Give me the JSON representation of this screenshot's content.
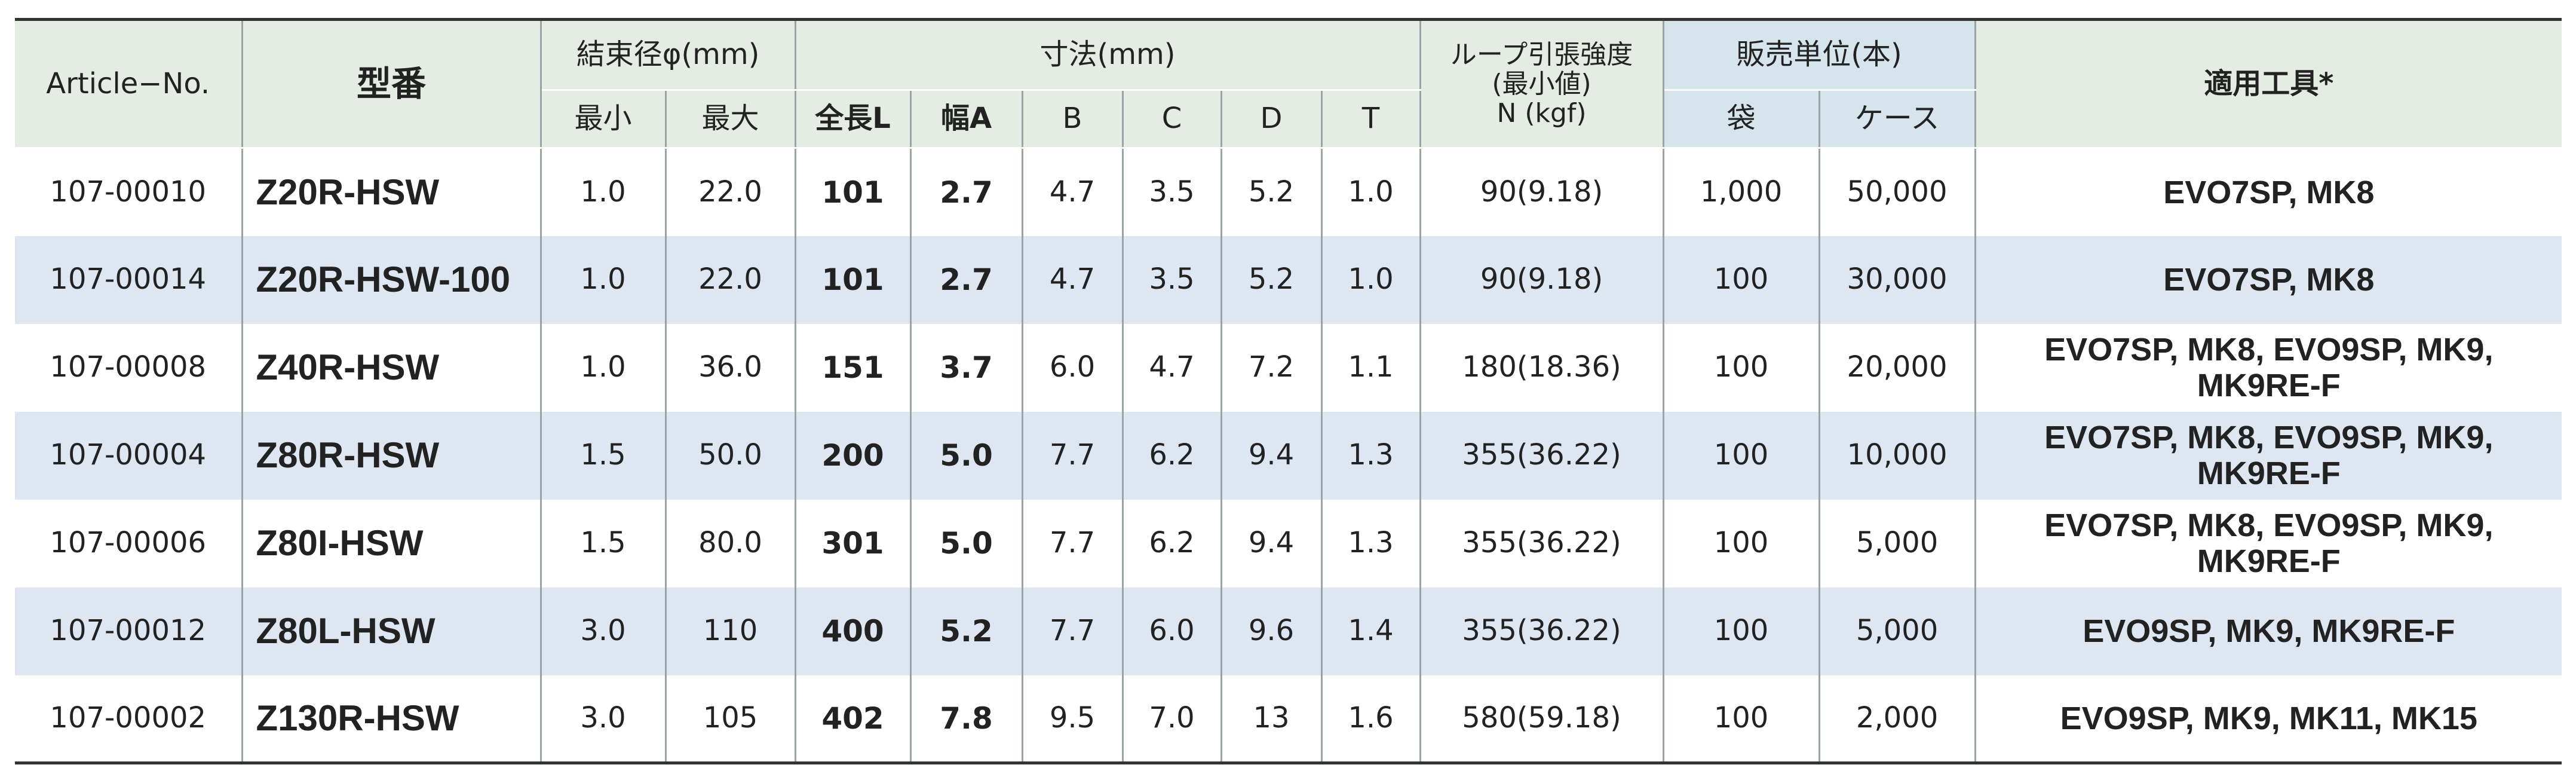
{
  "header": {
    "article_no": "Article−No.",
    "model": "型番",
    "bundle_diameter": "結束径φ(mm)",
    "dimensions": "寸法(mm)",
    "loop_strength": [
      "ループ引張強度",
      "(最小値)",
      "N (kgf)"
    ],
    "sales_unit": "販売単位(本)",
    "tools": "適用工具*",
    "sub": [
      "最小",
      "最大",
      "全長L",
      "幅A",
      "B",
      "C",
      "D",
      "T",
      "袋",
      "ケース"
    ]
  },
  "rows": [
    [
      "107-00010",
      "Z20R-HSW",
      "1.0",
      "22.0",
      "101",
      "2.7",
      "4.7",
      "3.5",
      "5.2",
      "1.0",
      "90(9.18)",
      "1,000",
      "50,000",
      "EVO7SP, MK8"
    ],
    [
      "107-00014",
      "Z20R-HSW-100",
      "1.0",
      "22.0",
      "101",
      "2.7",
      "4.7",
      "3.5",
      "5.2",
      "1.0",
      "90(9.18)",
      "100",
      "30,000",
      "EVO7SP, MK8"
    ],
    [
      "107-00008",
      "Z40R-HSW",
      "1.0",
      "36.0",
      "151",
      "3.7",
      "6.0",
      "4.7",
      "7.2",
      "1.1",
      "180(18.36)",
      "100",
      "20,000",
      "EVO7SP, MK8, EVO9SP, MK9, MK9RE-F"
    ],
    [
      "107-00004",
      "Z80R-HSW",
      "1.5",
      "50.0",
      "200",
      "5.0",
      "7.7",
      "6.2",
      "9.4",
      "1.3",
      "355(36.22)",
      "100",
      "10,000",
      "EVO7SP, MK8, EVO9SP, MK9, MK9RE-F"
    ],
    [
      "107-00006",
      "Z80I-HSW",
      "1.5",
      "80.0",
      "301",
      "5.0",
      "7.7",
      "6.2",
      "9.4",
      "1.3",
      "355(36.22)",
      "100",
      "5,000",
      "EVO7SP, MK8, EVO9SP, MK9, MK9RE-F"
    ],
    [
      "107-00012",
      "Z80L-HSW",
      "3.0",
      "110",
      "400",
      "5.2",
      "7.7",
      "6.0",
      "9.6",
      "1.4",
      "355(36.22)",
      "100",
      "5,000",
      "EVO9SP, MK9, MK9RE-F"
    ],
    [
      "107-00002",
      "Z130R-HSW",
      "3.0",
      "105",
      "402",
      "7.8",
      "9.5",
      "7.0",
      "13",
      "1.6",
      "580(59.18)",
      "100",
      "2,000",
      "EVO9SP, MK9, MK11, MK15"
    ]
  ]
}
